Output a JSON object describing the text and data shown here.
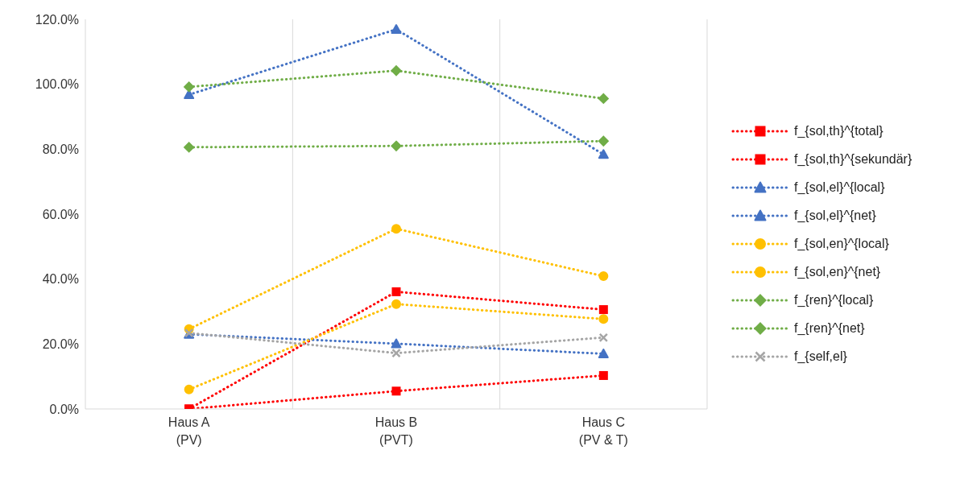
{
  "chart_data": {
    "type": "line",
    "categories": [
      "Haus A\n(PV)",
      "Haus B\n(PVT)",
      "Haus C\n(PV & T)"
    ],
    "ylim": [
      0,
      1.2
    ],
    "yticks": [
      {
        "value": 0,
        "label": "0.0%"
      },
      {
        "value": 0.2,
        "label": "20.0%"
      },
      {
        "value": 0.4,
        "label": "40.0%"
      },
      {
        "value": 0.6,
        "label": "60.0%"
      },
      {
        "value": 0.8,
        "label": "80.0%"
      },
      {
        "value": 1,
        "label": "100.0%"
      },
      {
        "value": 1.2,
        "label": "120.0%"
      }
    ],
    "legend": "right",
    "line_style": "dotted",
    "series": [
      {
        "name": "f_{sol,th}^{total}",
        "color": "#ff0000",
        "marker": "square",
        "values": [
          0,
          0.361,
          0.306
        ]
      },
      {
        "name": "f_{sol,th}^{sekundär}",
        "color": "#ff0000",
        "marker": "square",
        "values": [
          0,
          0.055,
          0.103
        ]
      },
      {
        "name": "f_{sol,el}^{local}",
        "color": "#4472c4",
        "marker": "triangle",
        "values": [
          0.23,
          0.201,
          0.17
        ]
      },
      {
        "name": "f_{sol,el}^{net}",
        "color": "#4472c4",
        "marker": "triangle",
        "values": [
          0.968,
          1.169,
          0.784
        ]
      },
      {
        "name": "f_{sol,en}^{local}",
        "color": "#ffc000",
        "marker": "circle",
        "values": [
          0.06,
          0.323,
          0.277
        ]
      },
      {
        "name": "f_{sol,en}^{net}",
        "color": "#ffc000",
        "marker": "circle",
        "values": [
          0.246,
          0.555,
          0.409
        ]
      },
      {
        "name": "f_{ren}^{local}",
        "color": "#70ad47",
        "marker": "diamond",
        "values": [
          0.806,
          0.81,
          0.825
        ]
      },
      {
        "name": "f_{ren}^{net}",
        "color": "#70ad47",
        "marker": "diamond",
        "values": [
          0.992,
          1.042,
          0.956
        ]
      },
      {
        "name": "f_{self,el}",
        "color": "#a5a5a5",
        "marker": "cross",
        "values": [
          0.234,
          0.172,
          0.22
        ]
      }
    ]
  }
}
